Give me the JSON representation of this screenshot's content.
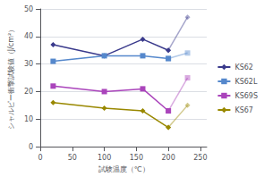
{
  "chart_data": {
    "type": "line",
    "xlabel": "試験温度（℃）",
    "ylabel": "シャルピー衝撃試験値（J/cm²）",
    "x": [
      20,
      100,
      160,
      200,
      230
    ],
    "series": [
      {
        "name": "KS62",
        "color": "#3a3a8c",
        "marker": "diamond",
        "values": [
          37,
          33,
          39,
          35,
          47
        ]
      },
      {
        "name": "KS62L",
        "color": "#5588cc",
        "marker": "square",
        "values": [
          31,
          33,
          33,
          32,
          34
        ]
      },
      {
        "name": "KS69S",
        "color": "#aa44bb",
        "marker": "square",
        "values": [
          22,
          20,
          21,
          13,
          25
        ]
      },
      {
        "name": "KS67",
        "color": "#998800",
        "marker": "diamond",
        "values": [
          16,
          14,
          13,
          7,
          15
        ]
      }
    ],
    "xlim": [
      0,
      260
    ],
    "xticks": [
      0,
      50,
      100,
      150,
      200,
      250
    ],
    "ylim": [
      0,
      50
    ],
    "yticks": [
      0,
      10,
      20,
      30,
      40,
      50
    ],
    "grid": true,
    "legend": "right"
  }
}
